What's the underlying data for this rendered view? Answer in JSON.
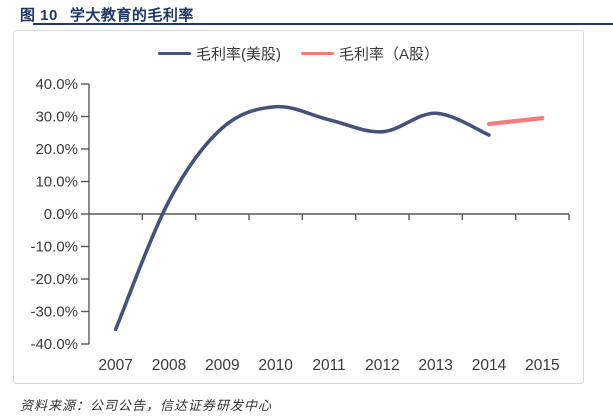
{
  "header": {
    "figure_label": "图 10",
    "title": "学大教育的毛利率"
  },
  "footer": {
    "source_note": "资料来源：公司公告，信达证券研发中心"
  },
  "colors": {
    "title_navy": "#1F3864",
    "us_line": "#44537A",
    "a_line": "#F87B79",
    "axis_line": "#595959",
    "label_text": "#3b3b3b",
    "box_border": "#D9D9D9"
  },
  "chart_data": {
    "type": "line",
    "title": "学大教育的毛利率",
    "categories": [
      "2007",
      "2008",
      "2009",
      "2010",
      "2011",
      "2012",
      "2013",
      "2014",
      "2015"
    ],
    "series": [
      {
        "name": "毛利率(美股)",
        "color_key": "us_line",
        "smooth": true,
        "start_index": 0,
        "values": [
          -35.5,
          4.0,
          26.5,
          33.0,
          29.0,
          25.3,
          31.0,
          24.3
        ]
      },
      {
        "name": "毛利率（A股）",
        "color_key": "a_line",
        "smooth": false,
        "start_index": 7,
        "values": [
          27.7,
          29.5
        ]
      }
    ],
    "ylim": [
      -40,
      40
    ],
    "ytick_step": 10,
    "ytick_labels": [
      "40.0%",
      "30.0%",
      "20.0%",
      "10.0%",
      "0.0%",
      "-10.0%",
      "-20.0%",
      "-30.0%",
      "-40.0%"
    ],
    "xlabel": "",
    "ylabel": "",
    "grid": false,
    "legend_position": "top"
  }
}
